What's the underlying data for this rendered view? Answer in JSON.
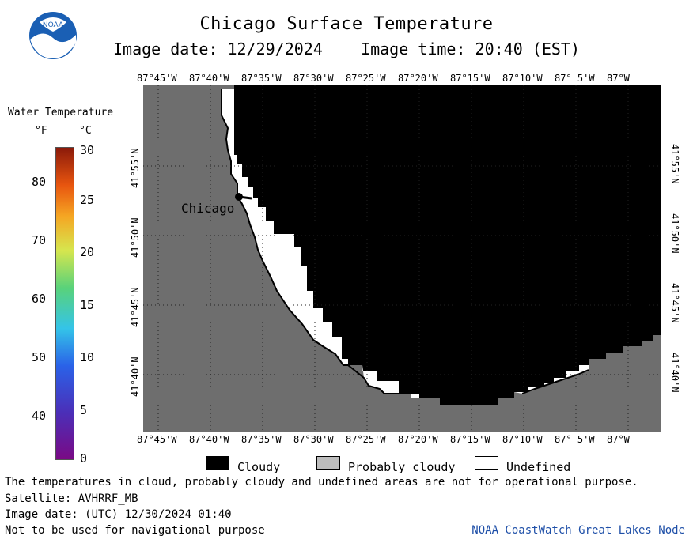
{
  "header": {
    "title": "Chicago Surface Temperature",
    "image_date_label": "Image date: 12/29/2024",
    "image_time_label": "Image time: 20:40 (EST)"
  },
  "logo": {
    "text": "NOAA",
    "icon": "noaa-logo-icon"
  },
  "colorbar": {
    "title": "Water Temperature",
    "unit_f": "°F",
    "unit_c": "°C",
    "fahrenheit_ticks": [
      "80",
      "70",
      "60",
      "50",
      "40"
    ],
    "celsius_ticks": [
      "30",
      "25",
      "20",
      "15",
      "10",
      "5",
      "0"
    ]
  },
  "map": {
    "longitude_labels": [
      "87°45'W",
      "87°40'W",
      "87°35'W",
      "87°30'W",
      "87°25'W",
      "87°20'W",
      "87°15'W",
      "87°10'W",
      "87° 5'W",
      "87°W"
    ],
    "latitude_labels": [
      "41°55'N",
      "41°50'N",
      "41°45'N",
      "41°40'N"
    ],
    "city_label": "Chicago",
    "colors": {
      "land": "#6e6e6e",
      "cloudy": "#000000",
      "undefined": "#ffffff"
    }
  },
  "legend": {
    "cloudy": "Cloudy",
    "probably_cloudy": "Probably cloudy",
    "undefined": "Undefined"
  },
  "footer": {
    "disclaimer": "The temperatures in cloud, probably cloudy and undefined areas are not for operational purpose.",
    "satellite": "Satellite: AVHRRF_MB",
    "utc_date": "Image date: (UTC) 12/30/2024  01:40",
    "nav_warning": "Not to be used for navigational purpose",
    "credit": "NOAA CoastWatch Great Lakes Node"
  }
}
